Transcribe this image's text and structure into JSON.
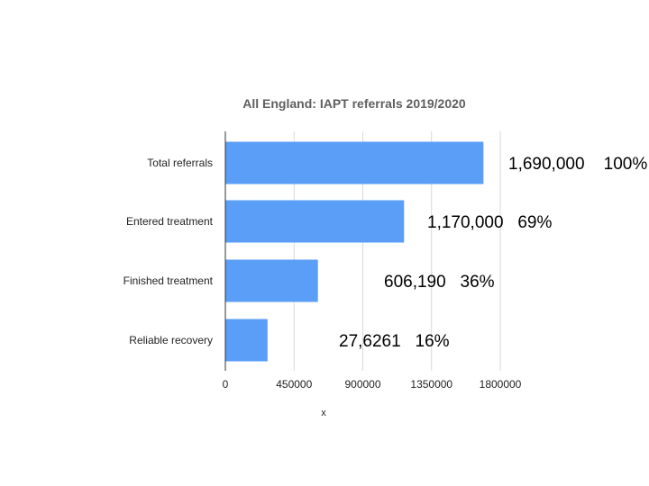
{
  "chart_data": {
    "type": "bar",
    "orientation": "horizontal",
    "title": "All England:  IAPT referrals 2019/2020",
    "xlabel": "x",
    "ylabel": "",
    "categories": [
      "Total referrals",
      "Entered treatment",
      "Finished treatment",
      "Reliable recovery"
    ],
    "values": [
      1690000,
      1170000,
      606190,
      276261
    ],
    "xlim": [
      0,
      1800000
    ],
    "xticks": [
      "0",
      "450000",
      "900000",
      "1350000",
      "1800000"
    ],
    "xtick_values": [
      0,
      450000,
      900000,
      1350000,
      1800000
    ],
    "grid": true,
    "legend": "none",
    "bar_color": "#5a9ef7",
    "annotations": [
      "1,690,000    100%",
      "1,170,000   69%",
      "606,190   36%",
      "27,6261   16%"
    ]
  }
}
